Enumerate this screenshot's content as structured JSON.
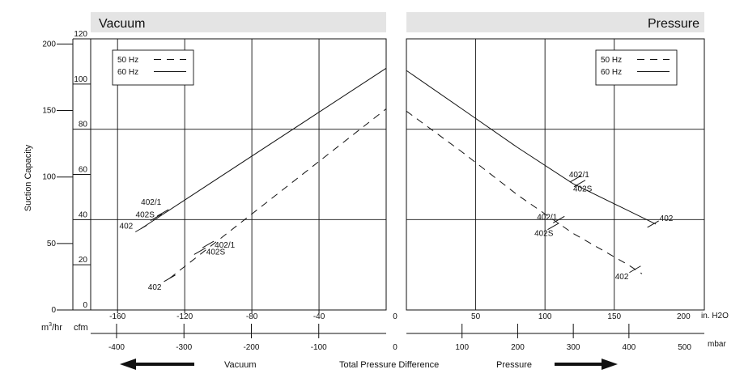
{
  "chart_data": {
    "type": "line",
    "ylabel": "Suction Capacity",
    "xlabel": "Total Pressure Difference",
    "left_panel": {
      "title": "Vacuum",
      "direction_label": "Vacuum",
      "x_unit_top": "in. H2O",
      "x_ticks_top": [
        "-160",
        "-120",
        "-80",
        "-40"
      ],
      "x_ticks_top_values": [
        -160,
        -120,
        -80,
        -40
      ],
      "x_unit_bottom": "mbar",
      "x_ticks_bottom": [
        "-400",
        "-300",
        "-200",
        "-100"
      ],
      "x_ticks_bottom_values": [
        -400,
        -300,
        -200,
        -100
      ],
      "xlim_inh2o": [
        -176,
        0
      ],
      "series": [
        {
          "name": "60 Hz",
          "style": "solid",
          "x": [
            -146,
            0
          ],
          "y": [
            36,
            107
          ]
        },
        {
          "name": "50 Hz",
          "style": "dashed",
          "x": [
            -129,
            0
          ],
          "y": [
            14,
            89
          ]
        }
      ],
      "annotations": [
        {
          "text": "402/1",
          "series": "60 Hz",
          "x": -133,
          "y": 43
        },
        {
          "text": "402S",
          "series": "60 Hz",
          "x": -137,
          "y": 41
        },
        {
          "text": "402",
          "series": "60 Hz",
          "x": -146,
          "y": 36
        },
        {
          "text": "402/1",
          "series": "50 Hz",
          "x": -106,
          "y": 29
        },
        {
          "text": "402S",
          "series": "50 Hz",
          "x": -111,
          "y": 26
        },
        {
          "text": "402",
          "series": "50 Hz",
          "x": -129,
          "y": 14
        }
      ],
      "legend": {
        "position": "top-left",
        "entries": [
          {
            "label": "50 Hz",
            "style": "dashed"
          },
          {
            "label": "60 Hz",
            "style": "solid"
          }
        ]
      }
    },
    "right_panel": {
      "title": "Pressure",
      "direction_label": "Pressure",
      "x_unit_top": "in. H2O",
      "x_ticks_top": [
        "0",
        "50",
        "100",
        "150",
        "200"
      ],
      "x_ticks_top_values": [
        0,
        50,
        100,
        150,
        200
      ],
      "x_unit_bottom": "mbar",
      "x_ticks_bottom": [
        "0",
        "100",
        "200",
        "300",
        "400",
        "500"
      ],
      "x_ticks_bottom_values": [
        0,
        100,
        200,
        300,
        400,
        500
      ],
      "xlim_inh2o": [
        0,
        215
      ],
      "series": [
        {
          "name": "60 Hz",
          "style": "solid",
          "x": [
            0,
            40,
            80,
            120,
            160,
            180
          ],
          "y": [
            106,
            89,
            72,
            56,
            44,
            38
          ]
        },
        {
          "name": "50 Hz",
          "style": "dashed",
          "x": [
            0,
            40,
            80,
            120,
            160,
            170
          ],
          "y": [
            88,
            70,
            51,
            34,
            20,
            16
          ]
        }
      ],
      "annotations": [
        {
          "text": "402/1",
          "series": "60 Hz",
          "x": 122,
          "y": 58
        },
        {
          "text": "402S",
          "series": "60 Hz",
          "x": 125,
          "y": 56
        },
        {
          "text": "402",
          "series": "60 Hz",
          "x": 178,
          "y": 38
        },
        {
          "text": "402/1",
          "series": "50 Hz",
          "x": 110,
          "y": 40
        },
        {
          "text": "402S",
          "series": "50 Hz",
          "x": 106,
          "y": 37
        },
        {
          "text": "402",
          "series": "50 Hz",
          "x": 165,
          "y": 18
        }
      ],
      "legend": {
        "position": "top-right",
        "entries": [
          {
            "label": "50 Hz",
            "style": "dashed"
          },
          {
            "label": "60 Hz",
            "style": "solid"
          }
        ]
      }
    },
    "y_axis_cfm": {
      "unit": "cfm",
      "ticks": [
        "0",
        "20",
        "40",
        "60",
        "80",
        "100",
        "120"
      ],
      "values": [
        0,
        20,
        40,
        60,
        80,
        100,
        120
      ],
      "ylim": [
        0,
        120
      ]
    },
    "y_axis_m3hr": {
      "unit_prefix": "m",
      "unit_superscript": "3",
      "unit_suffix": "/hr",
      "ticks": [
        "0",
        "50",
        "100",
        "150",
        "200"
      ],
      "values": [
        0,
        50,
        100,
        150,
        200
      ]
    },
    "grid": true
  }
}
